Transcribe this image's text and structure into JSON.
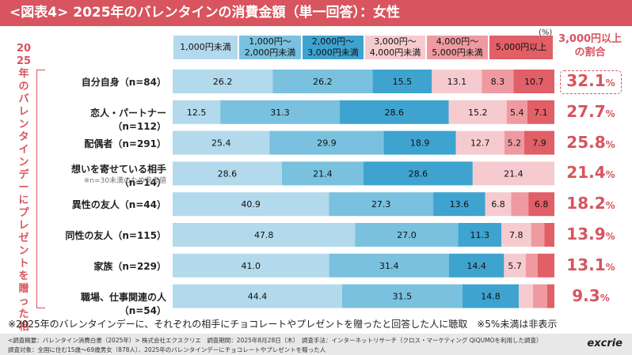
{
  "title": "<図表4> 2025年のバレンタインの消費金額（単一回答）：女性",
  "side_label": "2025年のバレンタインデーにプレゼントを贈った相手",
  "unit": "(%)",
  "share_header": "3,000円以上の割合",
  "colors": [
    "#b3d9ec",
    "#79c1de",
    "#3fa3cf",
    "#f6cbcf",
    "#ee9aa0",
    "#e15f66"
  ],
  "chart_data": {
    "type": "bar",
    "stacked": true,
    "orientation": "horizontal",
    "legend": [
      "1,000円未満",
      "1,000円～2,000円未満",
      "2,000円～3,000円未満",
      "3,000円～4,000円未満",
      "4,000円～5,000円未満",
      "5,000円以上"
    ],
    "categories": [
      "自分自身（n=84）",
      "恋人・パートナー（n=112）",
      "配偶者（n=291）",
      "想いを寄せている相手（n=14）",
      "異性の友人（n=44）",
      "同性の友人（n=115）",
      "家族（n=229）",
      "職場、仕事関連の人（n=54）"
    ],
    "category_note": {
      "index": 3,
      "text": "※n=30未満のため参考値"
    },
    "series": [
      {
        "name": "1,000円未満",
        "values": [
          26.2,
          12.5,
          25.4,
          28.6,
          40.9,
          47.8,
          41.0,
          44.4
        ]
      },
      {
        "name": "1,000円～2,000円未満",
        "values": [
          26.2,
          31.3,
          29.9,
          21.4,
          27.3,
          27.0,
          31.4,
          31.5
        ]
      },
      {
        "name": "2,000円～3,000円未満",
        "values": [
          15.5,
          28.6,
          18.9,
          28.6,
          13.6,
          11.3,
          14.4,
          14.8
        ]
      },
      {
        "name": "3,000円～4,000円未満",
        "values": [
          13.1,
          15.2,
          12.7,
          21.4,
          6.8,
          7.8,
          5.7,
          3.7
        ]
      },
      {
        "name": "4,000円～5,000円未満",
        "values": [
          8.3,
          5.4,
          5.2,
          0,
          4.5,
          3.5,
          3.1,
          3.7
        ]
      },
      {
        "name": "5,000円以上",
        "values": [
          10.7,
          7.1,
          7.9,
          0,
          6.8,
          2.6,
          4.4,
          1.9
        ]
      }
    ],
    "value_labels": [
      [
        "26.2",
        "26.2",
        "15.5",
        "13.1",
        "8.3",
        "10.7"
      ],
      [
        "12.5",
        "31.3",
        "28.6",
        "15.2",
        "5.4",
        "7.1"
      ],
      [
        "25.4",
        "29.9",
        "18.9",
        "12.7",
        "5.2",
        "7.9"
      ],
      [
        "28.6",
        "21.4",
        "28.6",
        "21.4",
        "",
        ""
      ],
      [
        "40.9",
        "27.3",
        "13.6",
        "6.8",
        "",
        "6.8"
      ],
      [
        "47.8",
        "27.0",
        "11.3",
        "7.8",
        "",
        ""
      ],
      [
        "41.0",
        "31.4",
        "14.4",
        "5.7",
        "",
        ""
      ],
      [
        "44.4",
        "31.5",
        "14.8",
        "",
        "",
        ""
      ]
    ],
    "share_3000_plus": [
      "32.1",
      "27.7",
      "25.8",
      "21.4",
      "18.2",
      "13.9",
      "13.1",
      "9.3"
    ],
    "share_unit": "%",
    "xlim": [
      0,
      100
    ]
  },
  "footnote": "※2025年のバレンタインデーに、それぞれの相手にチョコレートやプレゼントを贈ったと回答した人に聴取　※5%未満は非表示",
  "footer": {
    "line1": "<調査概要：バレンタイン消費白書（2025年）> 株式会社エクスクリエ　調査期間：2025年8月28日（木）　調査手法：インターネットリサーチ（クロス・マーケティング QiQUMOを利用した調査）",
    "line2": "調査対象：全国に住む15歳～69歳男女（878人）、2025年のバレンタインデーにチョコレートやプレゼントを贈った人"
  },
  "logo": "excrie"
}
